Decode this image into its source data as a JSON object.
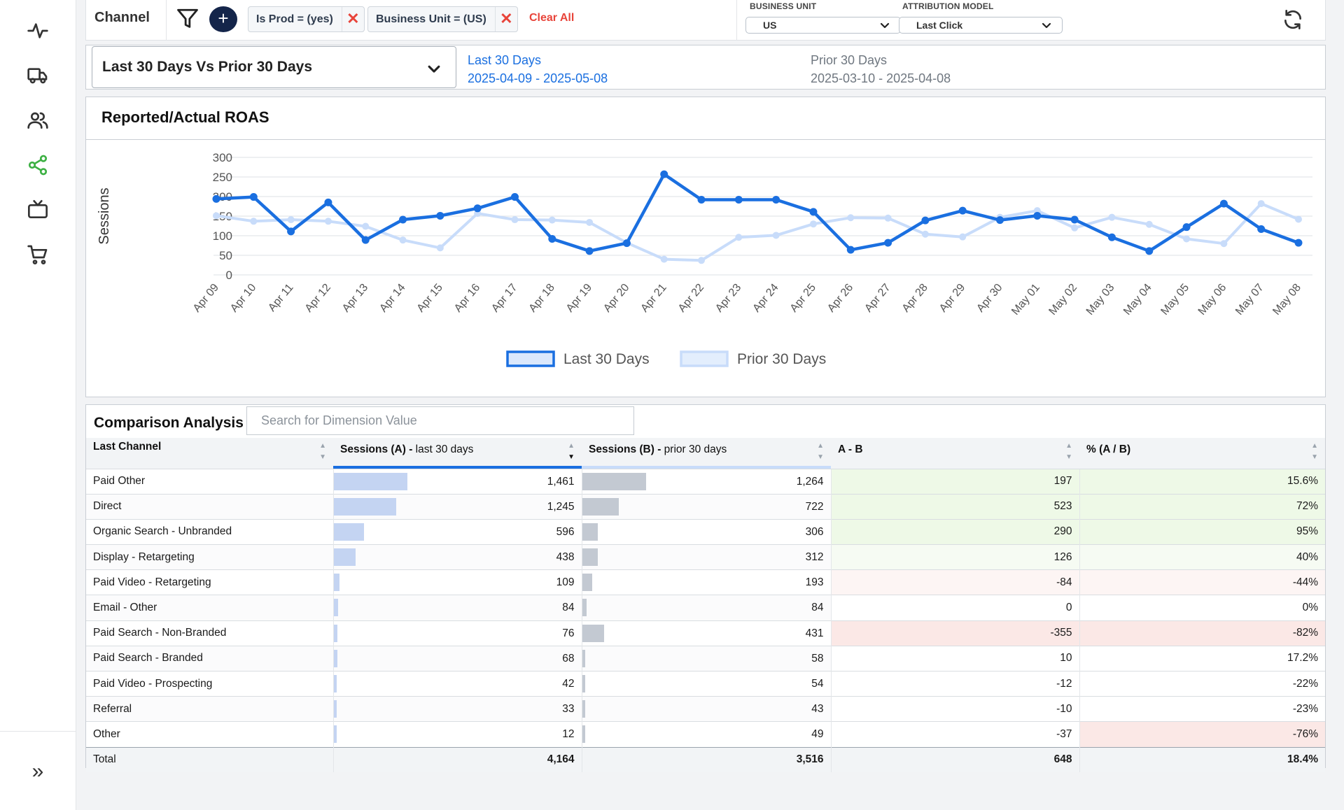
{
  "colors": {
    "accent": "#1a6fe0",
    "series_a": "#1a6fe0",
    "series_b": "#c8dcfa",
    "bar_a": "#c4d4f2",
    "bar_b": "#c3c9d2",
    "positive_bg": "#eef9e7",
    "negative_bg": "#fbe8e6",
    "active_nav": "#3cb043",
    "danger": "#e8443a"
  },
  "sidebar": {
    "items": [
      {
        "icon": "activity-icon",
        "active": false
      },
      {
        "icon": "truck-icon",
        "active": false
      },
      {
        "icon": "users-icon",
        "active": false
      },
      {
        "icon": "share-icon",
        "active": true
      },
      {
        "icon": "tv-icon",
        "active": false
      },
      {
        "icon": "cart-icon",
        "active": false
      }
    ],
    "expand_icon": "double-chevron-right-icon",
    "expand_glyph": "»"
  },
  "toolbar": {
    "title": "Channel",
    "add_glyph": "+",
    "chips": [
      {
        "label": "Is Prod = (yes)"
      },
      {
        "label": "Business Unit = (US)"
      }
    ],
    "chip_close_glyph": "✕",
    "clear_all": "Clear All",
    "business_unit_label": "BUSINESS UNIT",
    "business_unit_value": "US",
    "attribution_label": "ATTRIBUTION MODEL",
    "attribution_value": "Last Click"
  },
  "period": {
    "selector": "Last 30 Days Vs Prior 30 Days",
    "a_label": "Last 30 Days",
    "a_range": "2025-04-09 - 2025-05-08",
    "b_label": "Prior 30 Days",
    "b_range": "2025-03-10 - 2025-04-08"
  },
  "chart_card": {
    "title": "Reported/Actual ROAS"
  },
  "chart_data": {
    "type": "line",
    "ylabel": "Sessions",
    "ylim": [
      0,
      300
    ],
    "yticks": [
      0,
      50,
      100,
      150,
      200,
      250,
      300
    ],
    "grid": true,
    "legend": "bottom-center",
    "categories": [
      "Apr 09",
      "Apr 10",
      "Apr 11",
      "Apr 12",
      "Apr 13",
      "Apr 14",
      "Apr 15",
      "Apr 16",
      "Apr 17",
      "Apr 18",
      "Apr 19",
      "Apr 20",
      "Apr 21",
      "Apr 22",
      "Apr 23",
      "Apr 24",
      "Apr 25",
      "Apr 26",
      "Apr 27",
      "Apr 28",
      "Apr 29",
      "Apr 30",
      "May 01",
      "May 02",
      "May 03",
      "May 04",
      "May 05",
      "May 06",
      "May 07",
      "May 08"
    ],
    "series": [
      {
        "name": "Last 30 Days",
        "values": [
          194,
          199,
          111,
          185,
          89,
          141,
          151,
          170,
          199,
          92,
          61,
          81,
          257,
          192,
          192,
          192,
          161,
          64,
          82,
          139,
          164,
          140,
          151,
          141,
          96,
          61,
          122,
          182,
          117,
          82
        ]
      },
      {
        "name": "Prior 30 Days",
        "values": [
          151,
          137,
          141,
          137,
          124,
          89,
          69,
          157,
          141,
          140,
          134,
          82,
          40,
          37,
          96,
          101,
          130,
          146,
          145,
          104,
          97,
          147,
          164,
          120,
          147,
          129,
          92,
          80,
          182,
          142
        ]
      }
    ]
  },
  "comparison": {
    "title": "Comparison Analysis",
    "search_placeholder": "Search for Dimension Value",
    "columns": [
      {
        "label": "Last Channel",
        "sub": ""
      },
      {
        "label": "Sessions (A) -",
        "sub": " last 30 days"
      },
      {
        "label": "Sessions (B) -",
        "sub": " prior 30 days"
      },
      {
        "label": "A - B",
        "sub": ""
      },
      {
        "label": "% (A / B)",
        "sub": ""
      }
    ],
    "sort_up": "▲",
    "sort_down": "▼",
    "rows": [
      {
        "channel": "Paid Other",
        "a": "1,461",
        "a_val": 1461,
        "b": "1,264",
        "b_val": 1264,
        "diff": "197",
        "pct": "15.6%",
        "tone": "pos"
      },
      {
        "channel": "Direct",
        "a": "1,245",
        "a_val": 1245,
        "b": "722",
        "b_val": 722,
        "diff": "523",
        "pct": "72%",
        "tone": "pos"
      },
      {
        "channel": "Organic Search - Unbranded",
        "a": "596",
        "a_val": 596,
        "b": "306",
        "b_val": 306,
        "diff": "290",
        "pct": "95%",
        "tone": "pos"
      },
      {
        "channel": "Display - Retargeting",
        "a": "438",
        "a_val": 438,
        "b": "312",
        "b_val": 312,
        "diff": "126",
        "pct": "40%",
        "tone": "pos-light"
      },
      {
        "channel": "Paid Video - Retargeting",
        "a": "109",
        "a_val": 109,
        "b": "193",
        "b_val": 193,
        "diff": "-84",
        "pct": "-44%",
        "tone": "neg-light"
      },
      {
        "channel": "Email - Other",
        "a": "84",
        "a_val": 84,
        "b": "84",
        "b_val": 84,
        "diff": "0",
        "pct": "0%",
        "tone": "none"
      },
      {
        "channel": "Paid Search - Non-Branded",
        "a": "76",
        "a_val": 76,
        "b": "431",
        "b_val": 431,
        "diff": "-355",
        "pct": "-82%",
        "tone": "neg"
      },
      {
        "channel": "Paid Search - Branded",
        "a": "68",
        "a_val": 68,
        "b": "58",
        "b_val": 58,
        "diff": "10",
        "pct": "17.2%",
        "tone": "none"
      },
      {
        "channel": "Paid Video - Prospecting",
        "a": "42",
        "a_val": 42,
        "b": "54",
        "b_val": 54,
        "diff": "-12",
        "pct": "-22%",
        "tone": "none"
      },
      {
        "channel": "Referral",
        "a": "33",
        "a_val": 33,
        "b": "43",
        "b_val": 43,
        "diff": "-10",
        "pct": "-23%",
        "tone": "none"
      },
      {
        "channel": "Other",
        "a": "12",
        "a_val": 12,
        "b": "49",
        "b_val": 49,
        "diff": "-37",
        "pct": "-76%",
        "tone": "neg-pct"
      }
    ],
    "total": {
      "label": "Total",
      "a": "4,164",
      "b": "3,516",
      "diff": "648",
      "pct": "18.4%"
    }
  }
}
